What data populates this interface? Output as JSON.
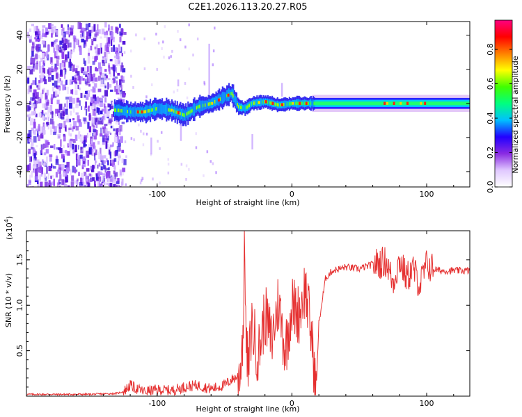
{
  "title": "C2E1.2026.113.20.27.R05",
  "chart_data": [
    {
      "type": "heatmap",
      "title": "C2E1.2026.113.20.27.R05",
      "xlabel": "Height of straight line (km)",
      "ylabel": "Frequency (Hz)",
      "xlim": [
        -197,
        132
      ],
      "ylim": [
        -49,
        48
      ],
      "x_ticks": [
        -100,
        0,
        100
      ],
      "y_ticks": [
        -40,
        -20,
        0,
        20,
        40
      ],
      "colorbar": {
        "label": "Normalized spectral amplitude",
        "range": [
          0,
          0.97
        ],
        "ticks": [
          0.0,
          0.2,
          0.4,
          0.6,
          0.8
        ],
        "colors": [
          "#ffffff",
          "#e0c8ff",
          "#8a2be2",
          "#2200ff",
          "#00c0ff",
          "#00ff80",
          "#40ff00",
          "#ffff00",
          "#ff8000",
          "#ff0000",
          "#ff0080"
        ]
      },
      "ridge": {
        "x": [
          -197,
          -150,
          -130,
          -120,
          -110,
          -100,
          -90,
          -80,
          -70,
          -60,
          -50,
          -45,
          -40,
          -35,
          -30,
          -20,
          -10,
          0,
          20,
          60,
          100,
          132
        ],
        "y": [
          -3,
          -4,
          -4,
          -5,
          -5,
          -3,
          -4,
          -7,
          -2,
          0,
          4,
          6,
          -2,
          -3,
          0,
          1,
          -1,
          0,
          0,
          0,
          0,
          0
        ]
      }
    },
    {
      "type": "line",
      "xlabel": "Height of straight line (km)",
      "ylabel": "SNR (10 * v/v)",
      "multiplier_label": "(x10",
      "multiplier_exp": "4",
      "multiplier_close": ")",
      "xlim": [
        -197,
        132
      ],
      "ylim": [
        0,
        1.82
      ],
      "x_ticks": [
        -100,
        0,
        100
      ],
      "y_ticks": [
        0.5,
        1.0,
        1.5
      ],
      "color": "#e53030",
      "series": [
        {
          "name": "SNR",
          "x": [
            -197,
            -170,
            -150,
            -130,
            -125,
            -120,
            -115,
            -110,
            -100,
            -90,
            -80,
            -70,
            -60,
            -50,
            -45,
            -40,
            -38,
            -36,
            -35,
            -34,
            -32,
            -30,
            -25,
            -20,
            -15,
            -10,
            -5,
            0,
            5,
            10,
            15,
            17,
            18,
            20,
            25,
            30,
            40,
            50,
            60,
            70,
            75,
            80,
            85,
            90,
            95,
            100,
            105,
            110,
            120,
            132
          ],
          "y": [
            0.02,
            0.02,
            0.02,
            0.03,
            0.05,
            0.12,
            0.08,
            0.05,
            0.07,
            0.06,
            0.1,
            0.12,
            0.08,
            0.12,
            0.18,
            0.22,
            0.35,
            0.8,
            1.82,
            0.5,
            0.3,
            0.8,
            0.45,
            0.9,
            0.6,
            1.05,
            0.5,
            1.0,
            0.9,
            1.2,
            0.6,
            0.2,
            0.05,
            0.8,
            1.3,
            1.38,
            1.42,
            1.4,
            1.45,
            1.48,
            1.25,
            1.5,
            1.3,
            1.4,
            1.22,
            1.45,
            1.4,
            1.38,
            1.38,
            1.38
          ]
        }
      ]
    }
  ]
}
